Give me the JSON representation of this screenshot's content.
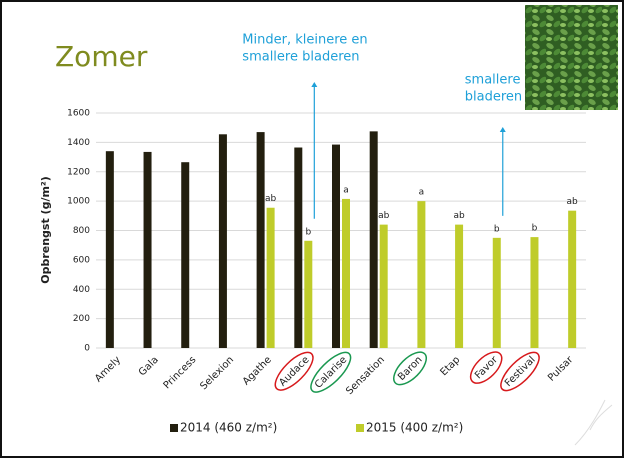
{
  "chart_data": {
    "type": "bar",
    "title": "Zomer",
    "y_label": "Opbrengst (g/m²)",
    "categories": [
      "Amely",
      "Gala",
      "Princess",
      "Selexion",
      "Agathe",
      "Audace",
      "Calarise",
      "Sensation",
      "Baron",
      "Etap",
      "Favor",
      "Festival",
      "Pulsar"
    ],
    "series": [
      {
        "name": "2014 (460 z/m²)",
        "color": "#231f0f",
        "values": [
          1340,
          1335,
          1265,
          1455,
          1470,
          1365,
          1385,
          1475,
          null,
          null,
          null,
          null,
          null
        ]
      },
      {
        "name": "2015 (400 z/m²)",
        "color": "#bfcc2a",
        "values": [
          null,
          null,
          null,
          null,
          955,
          730,
          1015,
          840,
          1000,
          840,
          750,
          755,
          935
        ],
        "letters": [
          null,
          null,
          null,
          null,
          "ab",
          "b",
          "a",
          "ab",
          "a",
          "ab",
          "b",
          "b",
          "ab"
        ]
      }
    ],
    "ylim": [
      0,
      1600
    ],
    "yticks": [
      0,
      200,
      400,
      600,
      800,
      1000,
      1200,
      1400,
      1600
    ],
    "grid": true,
    "label_circle_colors": [
      null,
      null,
      null,
      null,
      null,
      "#d7191c",
      "#1a9850",
      null,
      "#1a9850",
      null,
      "#d7191c",
      "#d7191c",
      null
    ],
    "annotations": [
      {
        "lines": [
          "Minder, kleinere en",
          "smallere bladeren"
        ],
        "category": 5
      },
      {
        "lines": [
          "smallere",
          "bladeren"
        ],
        "category": 10
      }
    ],
    "annotation_color": "#1ea0d8"
  }
}
